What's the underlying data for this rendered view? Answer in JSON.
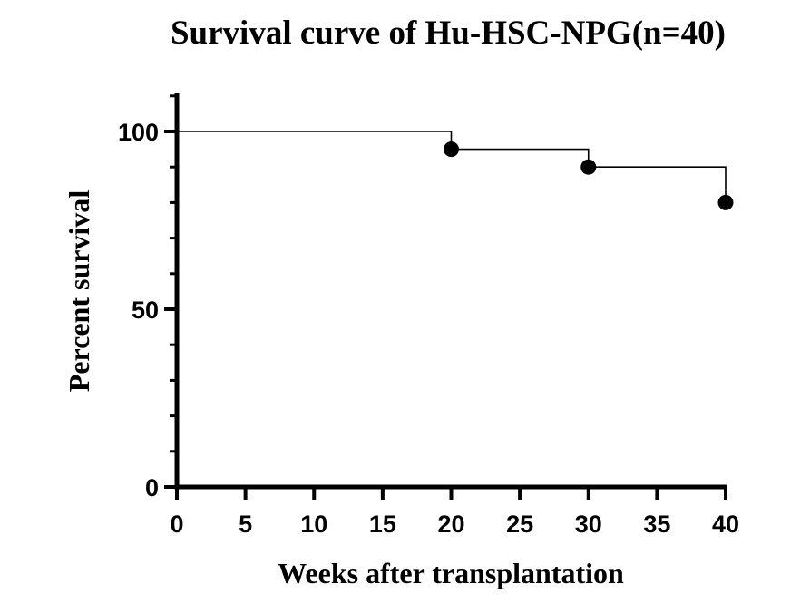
{
  "chart_data": {
    "type": "line",
    "subtype": "kaplan-meier-step",
    "title": "Survival curve of Hu-HSC-NPG(n=40)",
    "xlabel": "Weeks after transplantation",
    "ylabel": "Percent survival",
    "xlim": [
      0,
      40
    ],
    "ylim": [
      0,
      110
    ],
    "x_ticks": [
      "0",
      "5",
      "10",
      "15",
      "20",
      "25",
      "30",
      "35",
      "40"
    ],
    "y_ticks": [
      "0",
      "50",
      "100"
    ],
    "x_tick_values": [
      0,
      5,
      10,
      15,
      20,
      25,
      30,
      35,
      40
    ],
    "y_tick_values": [
      0,
      50,
      100
    ],
    "y_minor_step": 10,
    "grid": false,
    "legend": "none",
    "series": [
      {
        "color": "#000000",
        "steps": [
          {
            "x": 0,
            "y": 100
          },
          {
            "x": 20,
            "y": 95
          },
          {
            "x": 30,
            "y": 90
          },
          {
            "x": 40,
            "y": 80
          }
        ],
        "markers": [
          {
            "x": 20,
            "y": 95
          },
          {
            "x": 30,
            "y": 90
          },
          {
            "x": 40,
            "y": 80
          }
        ]
      }
    ]
  }
}
